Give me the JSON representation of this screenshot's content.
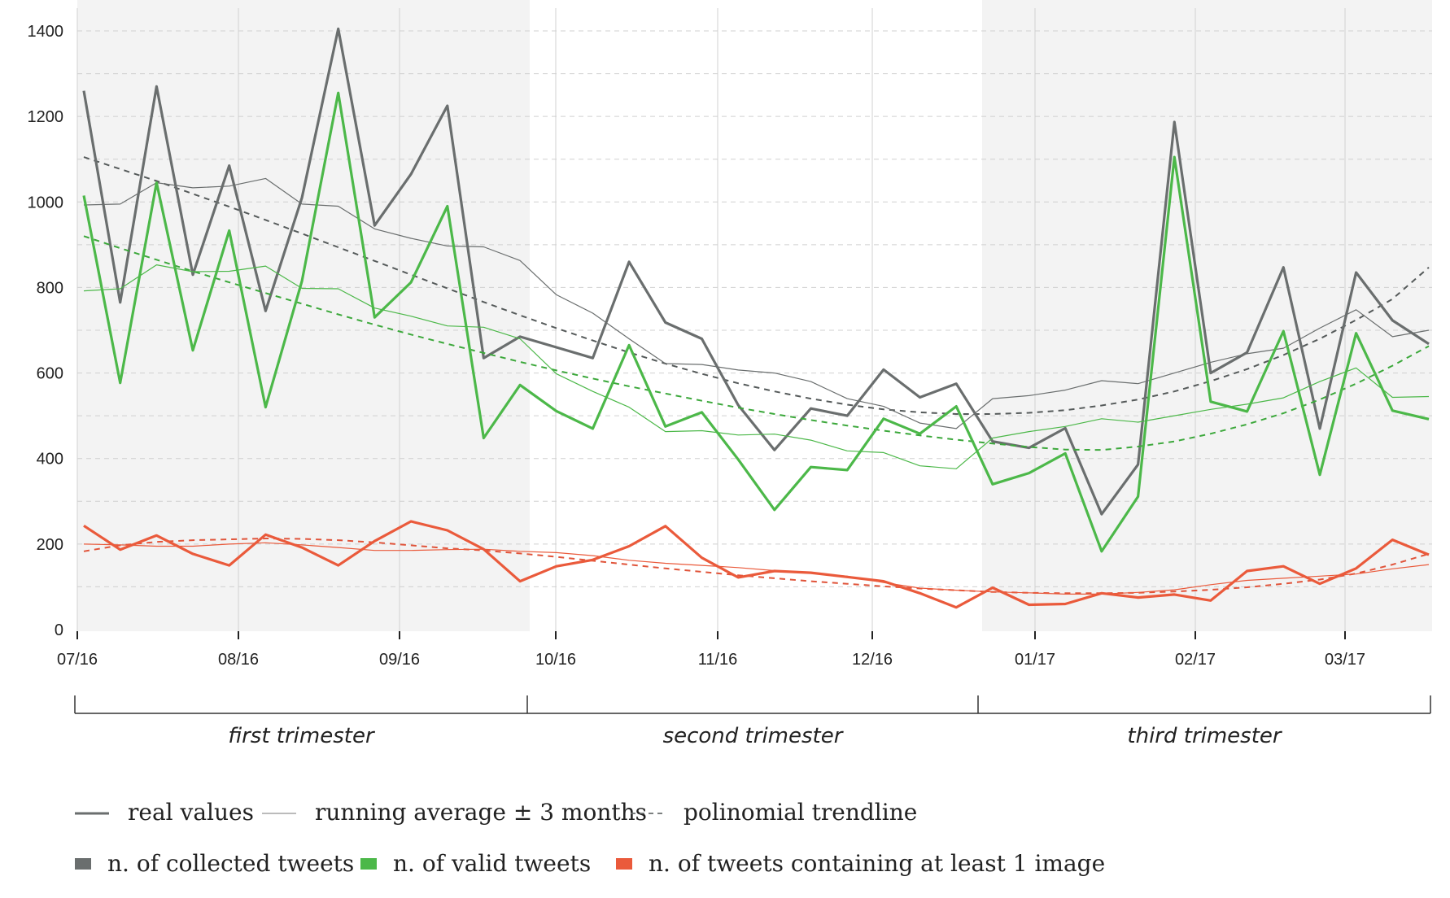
{
  "chart_data": {
    "type": "line",
    "ylim": [
      0,
      1400
    ],
    "yticks": [
      0,
      200,
      400,
      600,
      800,
      1000,
      1200,
      1400
    ],
    "grid": true,
    "month_ticks": [
      "07/16",
      "08/16",
      "09/16",
      "10/16",
      "11/16",
      "12/16",
      "01/17",
      "02/17",
      "03/17"
    ],
    "trimesters": [
      {
        "label": "first trimester",
        "shaded": true
      },
      {
        "label": "second trimester",
        "shaded": false
      },
      {
        "label": "third trimester",
        "shaded": true
      }
    ],
    "legend": {
      "line_styles": [
        {
          "label": "real values",
          "style": "thick"
        },
        {
          "label": "running average ± 3 months",
          "style": "thin"
        },
        {
          "label": "polinomial trendline",
          "style": "dashed"
        }
      ],
      "series_keys": [
        {
          "label": "n. of collected tweets",
          "color": "#6a6e6e"
        },
        {
          "label": "n. of valid tweets",
          "color": "#4cb849"
        },
        {
          "label": "n. of tweets containing at least 1 image",
          "color": "#ea5a3b"
        }
      ]
    },
    "series": [
      {
        "name": "n. of collected tweets",
        "color": "#6a6e6e",
        "real": [
          1260,
          765,
          1270,
          830,
          1085,
          745,
          1010,
          1405,
          945,
          1065,
          1225,
          635,
          685,
          660,
          635,
          860,
          718,
          680,
          525,
          420,
          517,
          500,
          608,
          543,
          575,
          440,
          425,
          471,
          270,
          386,
          1187,
          600,
          648,
          847,
          470,
          835,
          723,
          668
        ],
        "avg": [
          993,
          995,
          1045,
          1033,
          1037,
          1055,
          995,
          990,
          937,
          915,
          897,
          895,
          863,
          783,
          740,
          680,
          622,
          620,
          607,
          600,
          580,
          540,
          522,
          483,
          470,
          540,
          547,
          560,
          582,
          575,
          600,
          625,
          645,
          658,
          705,
          748,
          685,
          700
        ],
        "trend": [
          1105,
          1077,
          1049,
          1019,
          989,
          958,
          926,
          894,
          862,
          830,
          798,
          766,
          735,
          705,
          676,
          648,
          622,
          598,
          576,
          557,
          540,
          526,
          515,
          508,
          504,
          504,
          507,
          513,
          524,
          538,
          557,
          581,
          609,
          642,
          680,
          724,
          773,
          847
        ]
      },
      {
        "name": "n. of valid tweets",
        "color": "#4cb849",
        "real": [
          1015,
          577,
          1045,
          653,
          933,
          520,
          815,
          1255,
          730,
          812,
          990,
          448,
          572,
          511,
          470,
          665,
          475,
          508,
          398,
          280,
          380,
          373,
          493,
          458,
          522,
          340,
          366,
          412,
          183,
          311,
          1105,
          533,
          510,
          698,
          362,
          693,
          512,
          492
        ],
        "avg": [
          792,
          797,
          853,
          837,
          838,
          850,
          798,
          797,
          752,
          733,
          710,
          707,
          680,
          598,
          557,
          520,
          463,
          465,
          455,
          457,
          443,
          418,
          414,
          383,
          376,
          448,
          463,
          475,
          493,
          485,
          500,
          515,
          527,
          542,
          580,
          612,
          543,
          545
        ],
        "trend": [
          920,
          892,
          865,
          838,
          812,
          787,
          762,
          737,
          713,
          690,
          668,
          647,
          626,
          606,
          587,
          569,
          552,
          535,
          519,
          504,
          490,
          477,
          465,
          454,
          444,
          435,
          427,
          421,
          420,
          428,
          440,
          458,
          480,
          506,
          538,
          575,
          617,
          663
        ]
      },
      {
        "name": "n. of tweets containing at least 1 image",
        "color": "#ea5a3b",
        "real": [
          243,
          187,
          220,
          177,
          150,
          222,
          192,
          150,
          207,
          253,
          232,
          188,
          113,
          148,
          163,
          195,
          242,
          168,
          122,
          137,
          133,
          123,
          113,
          85,
          52,
          98,
          58,
          60,
          85,
          75,
          82,
          68,
          137,
          148,
          107,
          143,
          210,
          175
        ],
        "avg": [
          200,
          198,
          195,
          195,
          200,
          203,
          198,
          192,
          185,
          185,
          187,
          188,
          183,
          180,
          173,
          162,
          155,
          150,
          145,
          138,
          132,
          125,
          110,
          97,
          92,
          88,
          86,
          83,
          83,
          87,
          93,
          105,
          115,
          120,
          125,
          130,
          142,
          152
        ],
        "trend": [
          183,
          197,
          205,
          209,
          211,
          213,
          212,
          209,
          204,
          197,
          190,
          185,
          178,
          170,
          161,
          152,
          143,
          135,
          127,
          120,
          113,
          107,
          101,
          96,
          92,
          88,
          86,
          85,
          85,
          86,
          89,
          93,
          99,
          107,
          117,
          131,
          152,
          177
        ]
      }
    ]
  }
}
